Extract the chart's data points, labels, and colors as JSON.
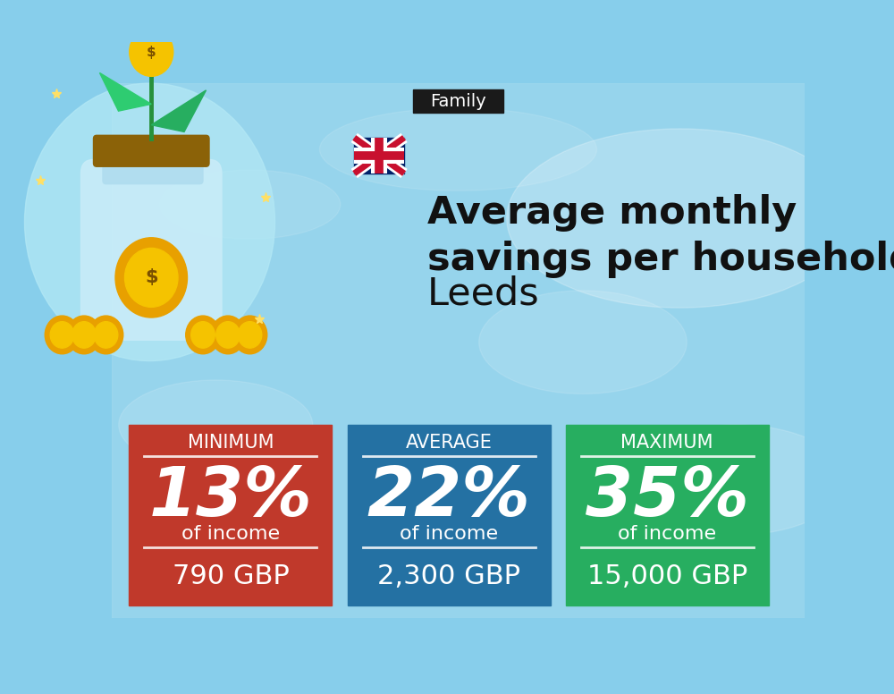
{
  "title_tag": "Family",
  "title_tag_bg": "#1a1a1a",
  "title_tag_color": "#ffffff",
  "headline_bold": "Average monthly\nsavings per household in",
  "headline_normal": "Leeds",
  "cards": [
    {
      "label": "MINIMUM",
      "percentage": "13%",
      "sub": "of income",
      "amount": "790 GBP",
      "color": "#c0392b"
    },
    {
      "label": "AVERAGE",
      "percentage": "22%",
      "sub": "of income",
      "amount": "2,300 GBP",
      "color": "#2471a3"
    },
    {
      "label": "MAXIMUM",
      "percentage": "35%",
      "sub": "of income",
      "amount": "15,000 GBP",
      "color": "#27ae60"
    }
  ],
  "card_text_color": "#ffffff",
  "flag_blue": "#012169",
  "flag_red": "#C8102E",
  "flag_white": "#FFFFFF"
}
